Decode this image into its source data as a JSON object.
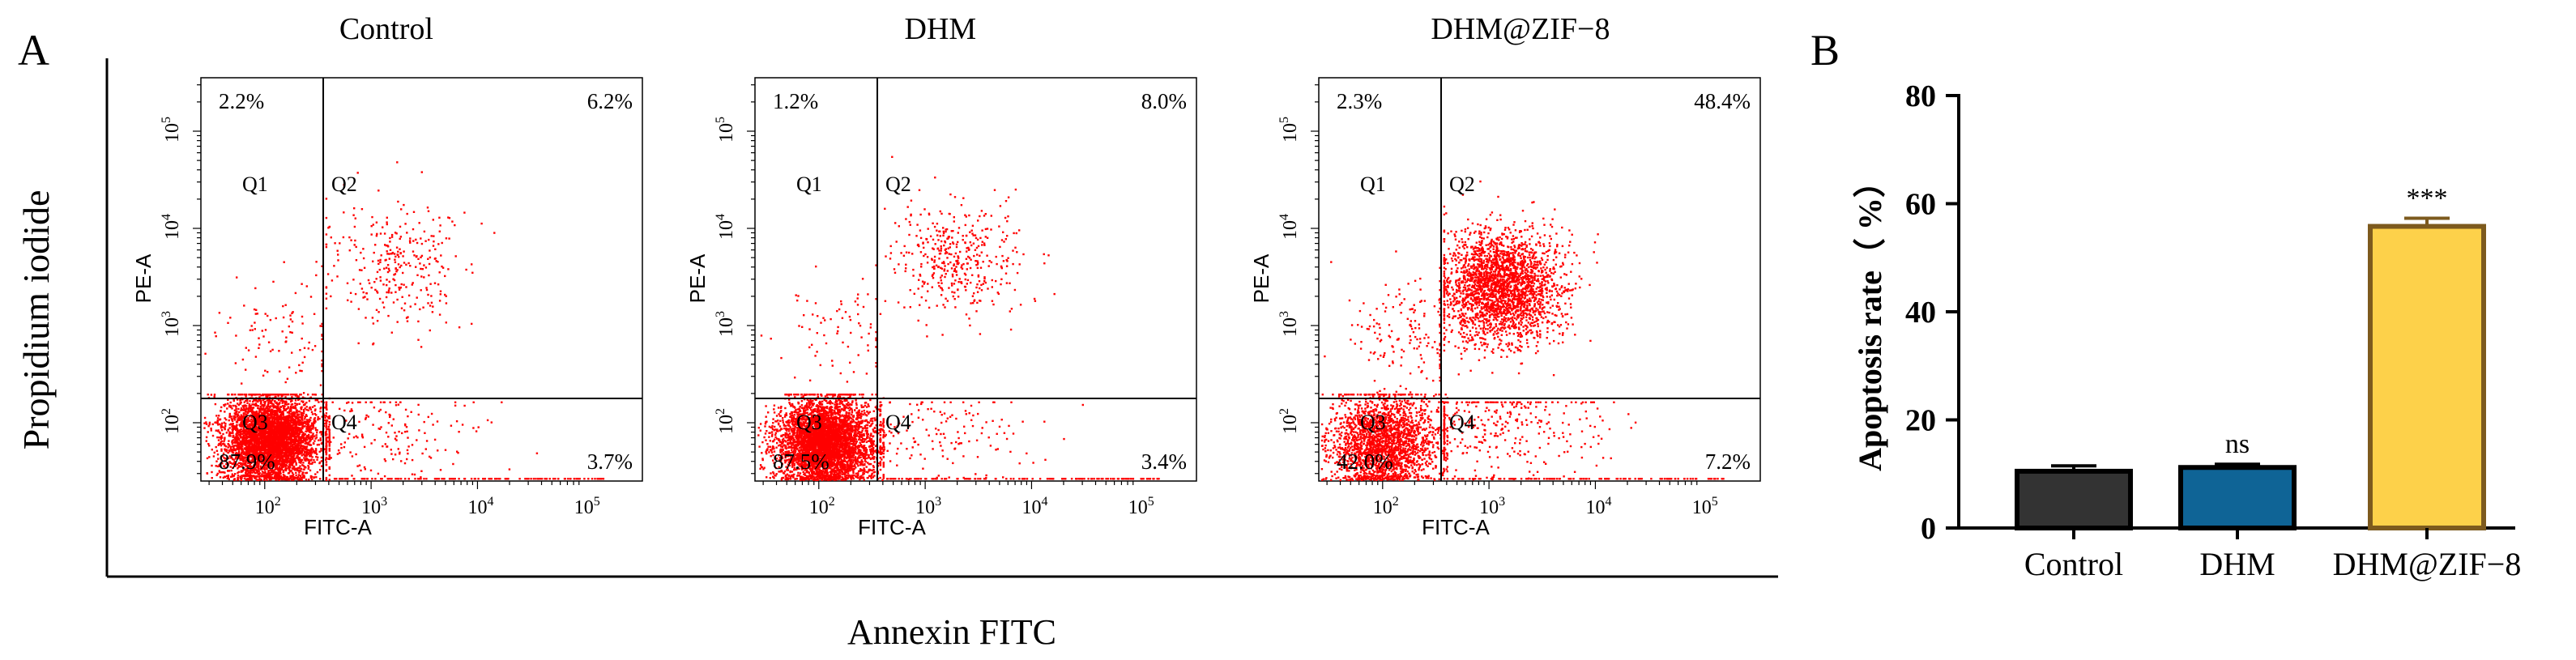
{
  "figure": {
    "panel_a_label": "A",
    "panel_b_label": "B",
    "shared_ylabel": "Propidium iodide",
    "shared_xlabel": "Annexin FITC",
    "dot_color": "#ff0000"
  },
  "chart_data": [
    {
      "type": "scatter",
      "title": "Control",
      "xlabel": "FITC-A",
      "ylabel": "PE-A",
      "x_scale": "log",
      "y_scale": "log",
      "x_ticks": [
        "10^2",
        "10^3",
        "10^4",
        "10^5"
      ],
      "y_ticks": [
        "10^2",
        "10^3",
        "10^4",
        "10^5"
      ],
      "quadrant_labels": [
        "Q1",
        "Q2",
        "Q3",
        "Q4"
      ],
      "quadrant_percent": {
        "Q1": "2.2%",
        "Q2": "6.2%",
        "Q3": "87.9%",
        "Q4": "3.7%"
      },
      "clusters": [
        {
          "region": "Q3",
          "x_log_center": 2.05,
          "y_log_center": 1.85,
          "spread": 0.22,
          "weight": 0.88
        },
        {
          "region": "Q2",
          "x_log_center": 3.2,
          "y_log_center": 3.65,
          "spread": 0.33,
          "weight": 0.06
        },
        {
          "region": "Q4",
          "x_log_center": 3.0,
          "y_log_center": 1.9,
          "spread": 0.4,
          "weight": 0.04
        },
        {
          "region": "Q1",
          "x_log_center": 2.2,
          "y_log_center": 2.9,
          "spread": 0.3,
          "weight": 0.02
        }
      ]
    },
    {
      "type": "scatter",
      "title": "DHM",
      "xlabel": "FITC-A",
      "ylabel": "PE-A",
      "x_scale": "log",
      "y_scale": "log",
      "x_ticks": [
        "10^2",
        "10^3",
        "10^4",
        "10^5"
      ],
      "y_ticks": [
        "10^2",
        "10^3",
        "10^4",
        "10^5"
      ],
      "quadrant_labels": [
        "Q1",
        "Q2",
        "Q3",
        "Q4"
      ],
      "quadrant_percent": {
        "Q1": "1.2%",
        "Q2": "8.0%",
        "Q3": "87.5%",
        "Q4": "3.4%"
      },
      "clusters": [
        {
          "region": "Q3",
          "x_log_center": 2.05,
          "y_log_center": 1.8,
          "spread": 0.22,
          "weight": 0.87
        },
        {
          "region": "Q2",
          "x_log_center": 3.3,
          "y_log_center": 3.7,
          "spread": 0.3,
          "weight": 0.08
        },
        {
          "region": "Q4",
          "x_log_center": 3.0,
          "y_log_center": 1.9,
          "spread": 0.4,
          "weight": 0.035
        },
        {
          "region": "Q1",
          "x_log_center": 2.2,
          "y_log_center": 2.9,
          "spread": 0.3,
          "weight": 0.015
        }
      ]
    },
    {
      "type": "scatter",
      "title": "DHM@ZIF−8",
      "xlabel": "FITC-A",
      "ylabel": "PE-A",
      "x_scale": "log",
      "y_scale": "log",
      "x_ticks": [
        "10^2",
        "10^3",
        "10^4",
        "10^5"
      ],
      "y_ticks": [
        "10^2",
        "10^3",
        "10^4",
        "10^5"
      ],
      "quadrant_labels": [
        "Q1",
        "Q2",
        "Q3",
        "Q4"
      ],
      "quadrant_percent": {
        "Q1": "2.3%",
        "Q2": "48.4%",
        "Q3": "42.0%",
        "Q4": "7.2%"
      },
      "clusters": [
        {
          "region": "Q2",
          "x_log_center": 3.1,
          "y_log_center": 3.4,
          "spread": 0.28,
          "weight": 0.48
        },
        {
          "region": "Q3",
          "x_log_center": 2.0,
          "y_log_center": 1.8,
          "spread": 0.25,
          "weight": 0.42
        },
        {
          "region": "Q4",
          "x_log_center": 3.0,
          "y_log_center": 2.0,
          "spread": 0.45,
          "weight": 0.07
        },
        {
          "region": "Q1",
          "x_log_center": 2.2,
          "y_log_center": 2.9,
          "spread": 0.3,
          "weight": 0.03
        }
      ]
    },
    {
      "type": "bar",
      "ylabel": "Apoptosis rate（ %）",
      "categories": [
        "Control",
        "DHM",
        "DHM@ZIF−8"
      ],
      "values": [
        10.5,
        11.2,
        55.8
      ],
      "errors": [
        1.0,
        0.6,
        1.5
      ],
      "significance": [
        "",
        "ns",
        "***"
      ],
      "colors": [
        "#333333",
        "#0f6496",
        "#fdd14a"
      ],
      "edge_colors": [
        "#000000",
        "#000000",
        "#7d5a1e"
      ],
      "ylim": [
        0,
        80
      ],
      "y_ticks": [
        0,
        20,
        40,
        60,
        80
      ]
    }
  ]
}
